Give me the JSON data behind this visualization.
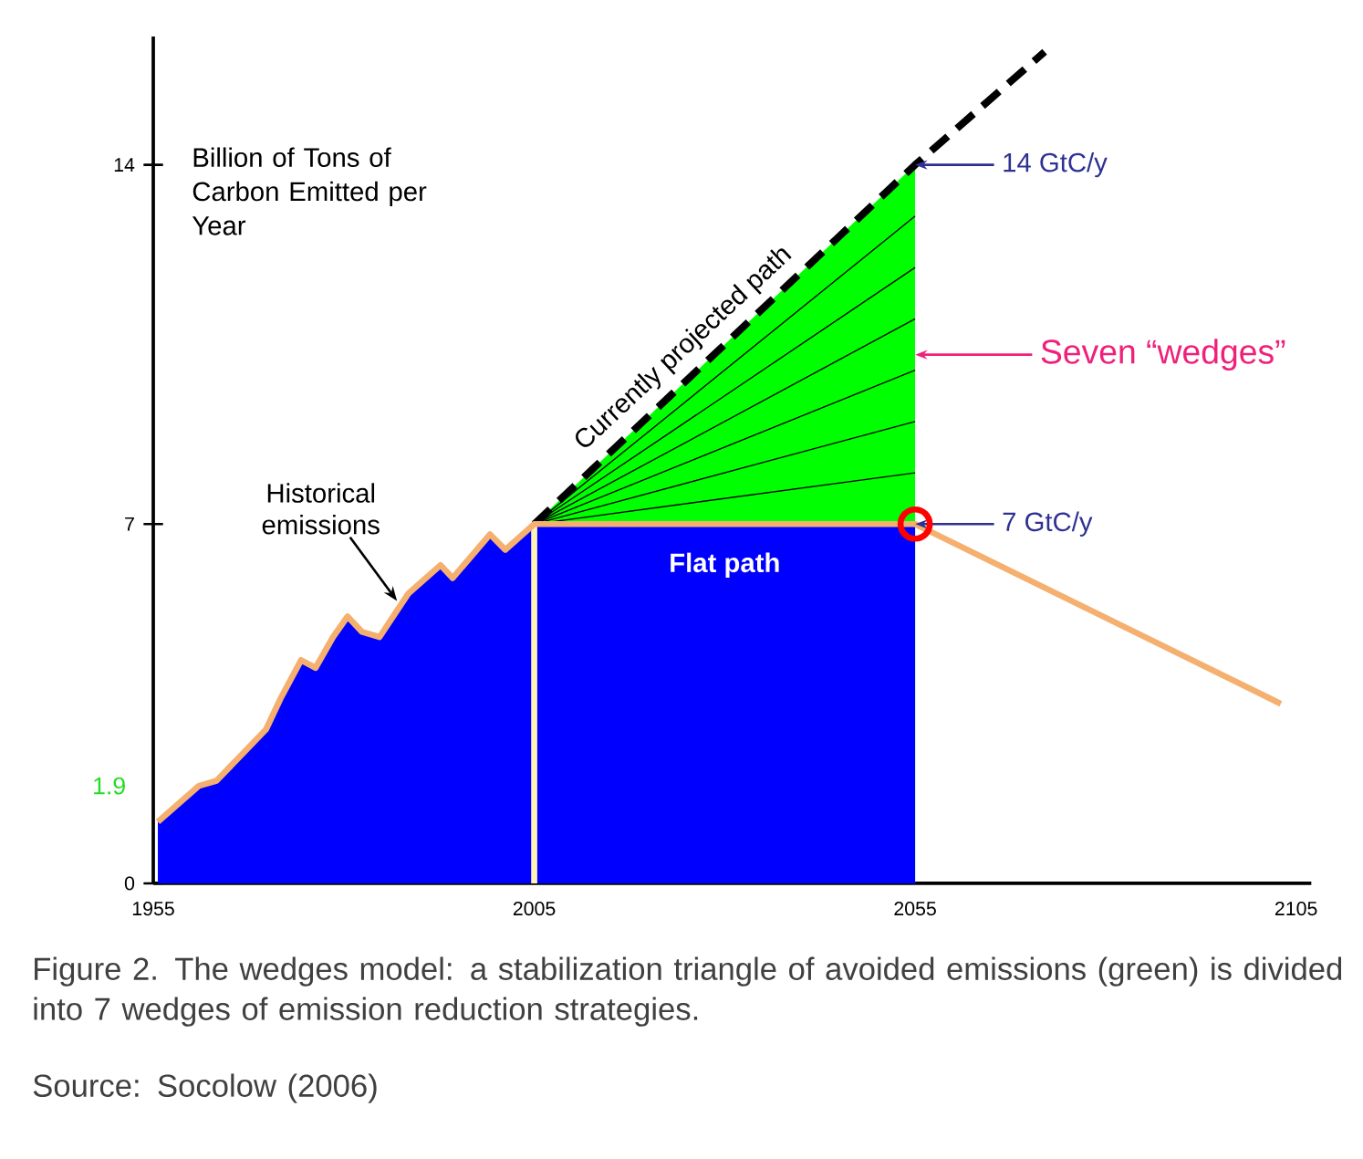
{
  "chart_data": {
    "type": "area",
    "ylabel": "Billion of Tons of Carbon Emitted per Year",
    "xlim": [
      1955,
      2107
    ],
    "ylim": [
      0,
      16.5
    ],
    "xticks": [
      1955,
      2005,
      2055,
      2105
    ],
    "yticks": [
      0,
      7,
      14
    ],
    "grid": false,
    "series": [
      {
        "type": "area",
        "color": "#00ff00",
        "x": [
          2005,
          2055
        ],
        "values": [
          7,
          14
        ]
      },
      {
        "color": "#0000ff",
        "x": [
          1955.6,
          1961,
          1963.3,
          1969.8,
          1971.7,
          1974.4,
          1976.3,
          1978.6,
          1980.5,
          1982.4,
          1984.7,
          1988.5,
          1992.7,
          1994.3,
          1999.2,
          2001.2,
          2005,
          2055
        ],
        "values": [
          1.2,
          1.9,
          2.0,
          3.0,
          3.6,
          4.35,
          4.2,
          4.8,
          5.2,
          4.9,
          4.8,
          5.65,
          6.2,
          5.95,
          6.8,
          6.5,
          7,
          7
        ]
      },
      {
        "type": "line",
        "color": "#000000",
        "x": [
          2005,
          2055
        ],
        "values": [
          7,
          8
        ]
      },
      {
        "type": "line",
        "color": "#000000",
        "x": [
          2005,
          2055
        ],
        "values": [
          7,
          9
        ]
      },
      {
        "type": "line",
        "color": "#000000",
        "x": [
          2005,
          2055
        ],
        "values": [
          7,
          10
        ]
      },
      {
        "type": "line",
        "color": "#000000",
        "x": [
          2005,
          2055
        ],
        "values": [
          7,
          11
        ]
      },
      {
        "type": "line",
        "color": "#000000",
        "x": [
          2005,
          2055
        ],
        "values": [
          7,
          12
        ]
      },
      {
        "type": "line",
        "color": "#000000",
        "x": [
          2005,
          2055
        ],
        "values": [
          7,
          13
        ]
      },
      {
        "type": "line",
        "color": "#000000",
        "line_style": "dashed",
        "x": [
          2005,
          2055,
          2072
        ],
        "values": [
          7,
          14,
          16.2
        ]
      },
      {
        "type": "line",
        "color": "#fff2b3",
        "x": [
          2005,
          2005
        ],
        "values": [
          0,
          7
        ]
      },
      {
        "type": "line",
        "color": "#f5b070",
        "x": [
          1955.6,
          1961,
          1963.3,
          1969.8,
          1971.7,
          1974.4,
          1976.3,
          1978.6,
          1980.5,
          1982.4,
          1984.7,
          1988.5,
          1992.7,
          1994.3,
          1999.2,
          2001.2,
          2005,
          2055,
          2103
        ],
        "values": [
          1.2,
          1.9,
          2.0,
          3.0,
          3.6,
          4.35,
          4.2,
          4.8,
          5.2,
          4.9,
          4.8,
          5.65,
          6.2,
          5.95,
          6.8,
          6.5,
          7,
          7,
          3.5
        ]
      },
      {
        "type": "scatter",
        "color": "#ff0000",
        "marker": "circle",
        "x": [
          2055
        ],
        "values": [
          7
        ]
      }
    ],
    "annotations": [
      {
        "text": "Historical emissions",
        "x": 1987,
        "y": 5.5
      },
      {
        "text": "Currently projected path",
        "x": 2030,
        "y": 10.6
      },
      {
        "text": "14 GtC/y",
        "x": 2055,
        "y": 14
      },
      {
        "text": "Seven “wedges”",
        "x": 2055,
        "y": 10.3
      },
      {
        "text": "7 GtC/y",
        "x": 2055,
        "y": 7
      },
      "Flat path",
      "1.9",
      "Figure 2. The wedges model: a stabilization triangle of avoided emissions (green) is divided into 7 wedges of emission reduction strategies.",
      "Source: Socolow (2006)"
    ]
  }
}
